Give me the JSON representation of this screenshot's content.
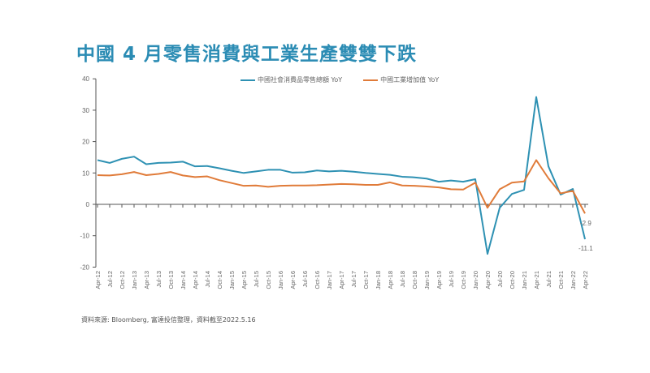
{
  "title": "中國 4 月零售消費與工業生產雙雙下跌",
  "legend": [
    {
      "label": "中國社會消費品零售總額 YoY",
      "color": "#2e91b3"
    },
    {
      "label": "中國工業增加值 YoY",
      "color": "#e07b39"
    }
  ],
  "footer": "資料來源: Bloomberg, 富達投信整理，資料截至2022.5.16",
  "annotations": {
    "retail_last": "-11.1",
    "industry_last": "-2.9"
  },
  "chart_data": {
    "type": "line",
    "title": "中國 4 月零售消費與工業生產雙雙下跌",
    "xlabel": "",
    "ylabel": "",
    "ylim": [
      -20,
      40
    ],
    "yticks": [
      40,
      30,
      20,
      10,
      0,
      -10,
      -20
    ],
    "grid": false,
    "legend_position": "top",
    "x_tick_labels": [
      "Apr-12",
      "Jul-12",
      "Oct-12",
      "Jan-13",
      "Apr-13",
      "Jul-13",
      "Oct-13",
      "Jan-14",
      "Apr-14",
      "Jul-14",
      "Oct-14",
      "Jan-15",
      "Apr-15",
      "Jul-15",
      "Oct-15",
      "Jan-16",
      "Apr-16",
      "Jul-16",
      "Oct-16",
      "Jan-17",
      "Apr-17",
      "Jul-17",
      "Oct-17",
      "Jan-18",
      "Apr-18",
      "Jul-18",
      "Oct-18",
      "Jan-19",
      "Apr-19",
      "Jul-19",
      "Oct-19",
      "Jan-20",
      "Apr-20",
      "Jul-20",
      "Oct-20",
      "Jan-21",
      "Apr-21",
      "Jul-21",
      "Oct-21",
      "Jan-22",
      "Apr-22"
    ],
    "x_frequency": "quarterly ticks, approx. monthly data (values sampled per quarter)",
    "series": [
      {
        "name": "中國社會消費品零售總額 YoY",
        "color": "#2e91b3",
        "values": [
          14.1,
          13.2,
          14.5,
          15.2,
          12.8,
          13.2,
          13.3,
          13.6,
          12.1,
          12.2,
          11.5,
          10.7,
          10.0,
          10.5,
          11.0,
          11.0,
          10.1,
          10.2,
          10.8,
          10.5,
          10.7,
          10.4,
          10.0,
          9.7,
          9.4,
          8.8,
          8.6,
          8.2,
          7.2,
          7.6,
          7.2,
          8.0,
          -15.8,
          -1.1,
          3.3,
          4.6,
          34.2,
          12.1,
          3.1,
          4.9,
          -11.1
        ],
        "last_label": "-11.1"
      },
      {
        "name": "中國工業增加值 YoY",
        "color": "#e07b39",
        "values": [
          9.3,
          9.2,
          9.6,
          10.3,
          9.3,
          9.7,
          10.3,
          9.2,
          8.7,
          8.9,
          7.7,
          6.8,
          5.9,
          6.0,
          5.6,
          5.9,
          6.0,
          6.0,
          6.1,
          6.3,
          6.5,
          6.4,
          6.2,
          6.2,
          7.0,
          6.0,
          5.9,
          5.7,
          5.4,
          4.8,
          4.7,
          6.9,
          -1.1,
          4.8,
          6.9,
          7.3,
          14.1,
          8.3,
          3.5,
          4.3,
          -2.9
        ],
        "last_label": "-2.9"
      }
    ]
  }
}
